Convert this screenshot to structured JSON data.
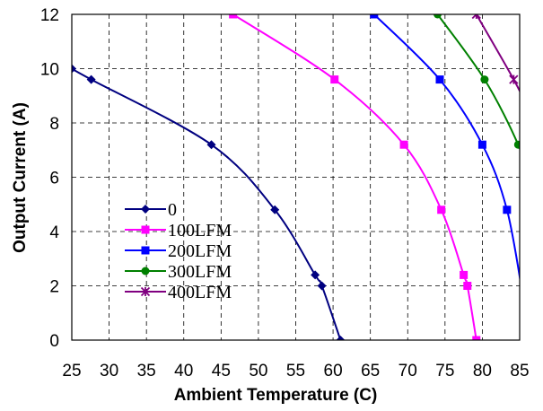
{
  "chart_data": {
    "type": "line",
    "xlabel": "Ambient Temperature (C)",
    "ylabel": "Output Current (A)",
    "xlim": [
      25,
      85
    ],
    "ylim": [
      0,
      12
    ],
    "xticks": [
      "25",
      "30",
      "35",
      "40",
      "45",
      "50",
      "55",
      "60",
      "65",
      "70",
      "75",
      "80",
      "85"
    ],
    "yticks": [
      "0",
      "2",
      "4",
      "6",
      "8",
      "10",
      "12"
    ],
    "grid": "dashed",
    "legend_position": "left",
    "series": [
      {
        "name": "0",
        "color": "#000080",
        "marker": "diamond",
        "points": [
          [
            25,
            10
          ],
          [
            27.6,
            9.6
          ],
          [
            43.7,
            7.2
          ],
          [
            52.2,
            4.8
          ],
          [
            57.6,
            2.4
          ],
          [
            58.5,
            2.0
          ],
          [
            61.0,
            0
          ]
        ]
      },
      {
        "name": "100LFM",
        "color": "#ff00ff",
        "marker": "square",
        "points": [
          [
            46.6,
            12
          ],
          [
            60.2,
            9.6
          ],
          [
            69.5,
            7.2
          ],
          [
            74.5,
            4.8
          ],
          [
            77.5,
            2.4
          ],
          [
            78.0,
            2.0
          ],
          [
            79.2,
            0
          ]
        ]
      },
      {
        "name": "200LFM",
        "color": "#0000ff",
        "marker": "square",
        "points": [
          [
            65.5,
            12
          ],
          [
            74.3,
            9.6
          ],
          [
            80.0,
            7.2
          ],
          [
            83.3,
            4.8
          ],
          [
            85.5,
            1.5
          ]
        ]
      },
      {
        "name": "300LFM",
        "color": "#008000",
        "marker": "circle",
        "points": [
          [
            74.0,
            12
          ],
          [
            80.3,
            9.6
          ],
          [
            84.8,
            7.2
          ],
          [
            86.0,
            6.0
          ]
        ]
      },
      {
        "name": "400LFM",
        "color": "#800080",
        "marker": "x",
        "points": [
          [
            79.2,
            12
          ],
          [
            84.2,
            9.6
          ],
          [
            86.0,
            8.6
          ]
        ]
      }
    ]
  }
}
